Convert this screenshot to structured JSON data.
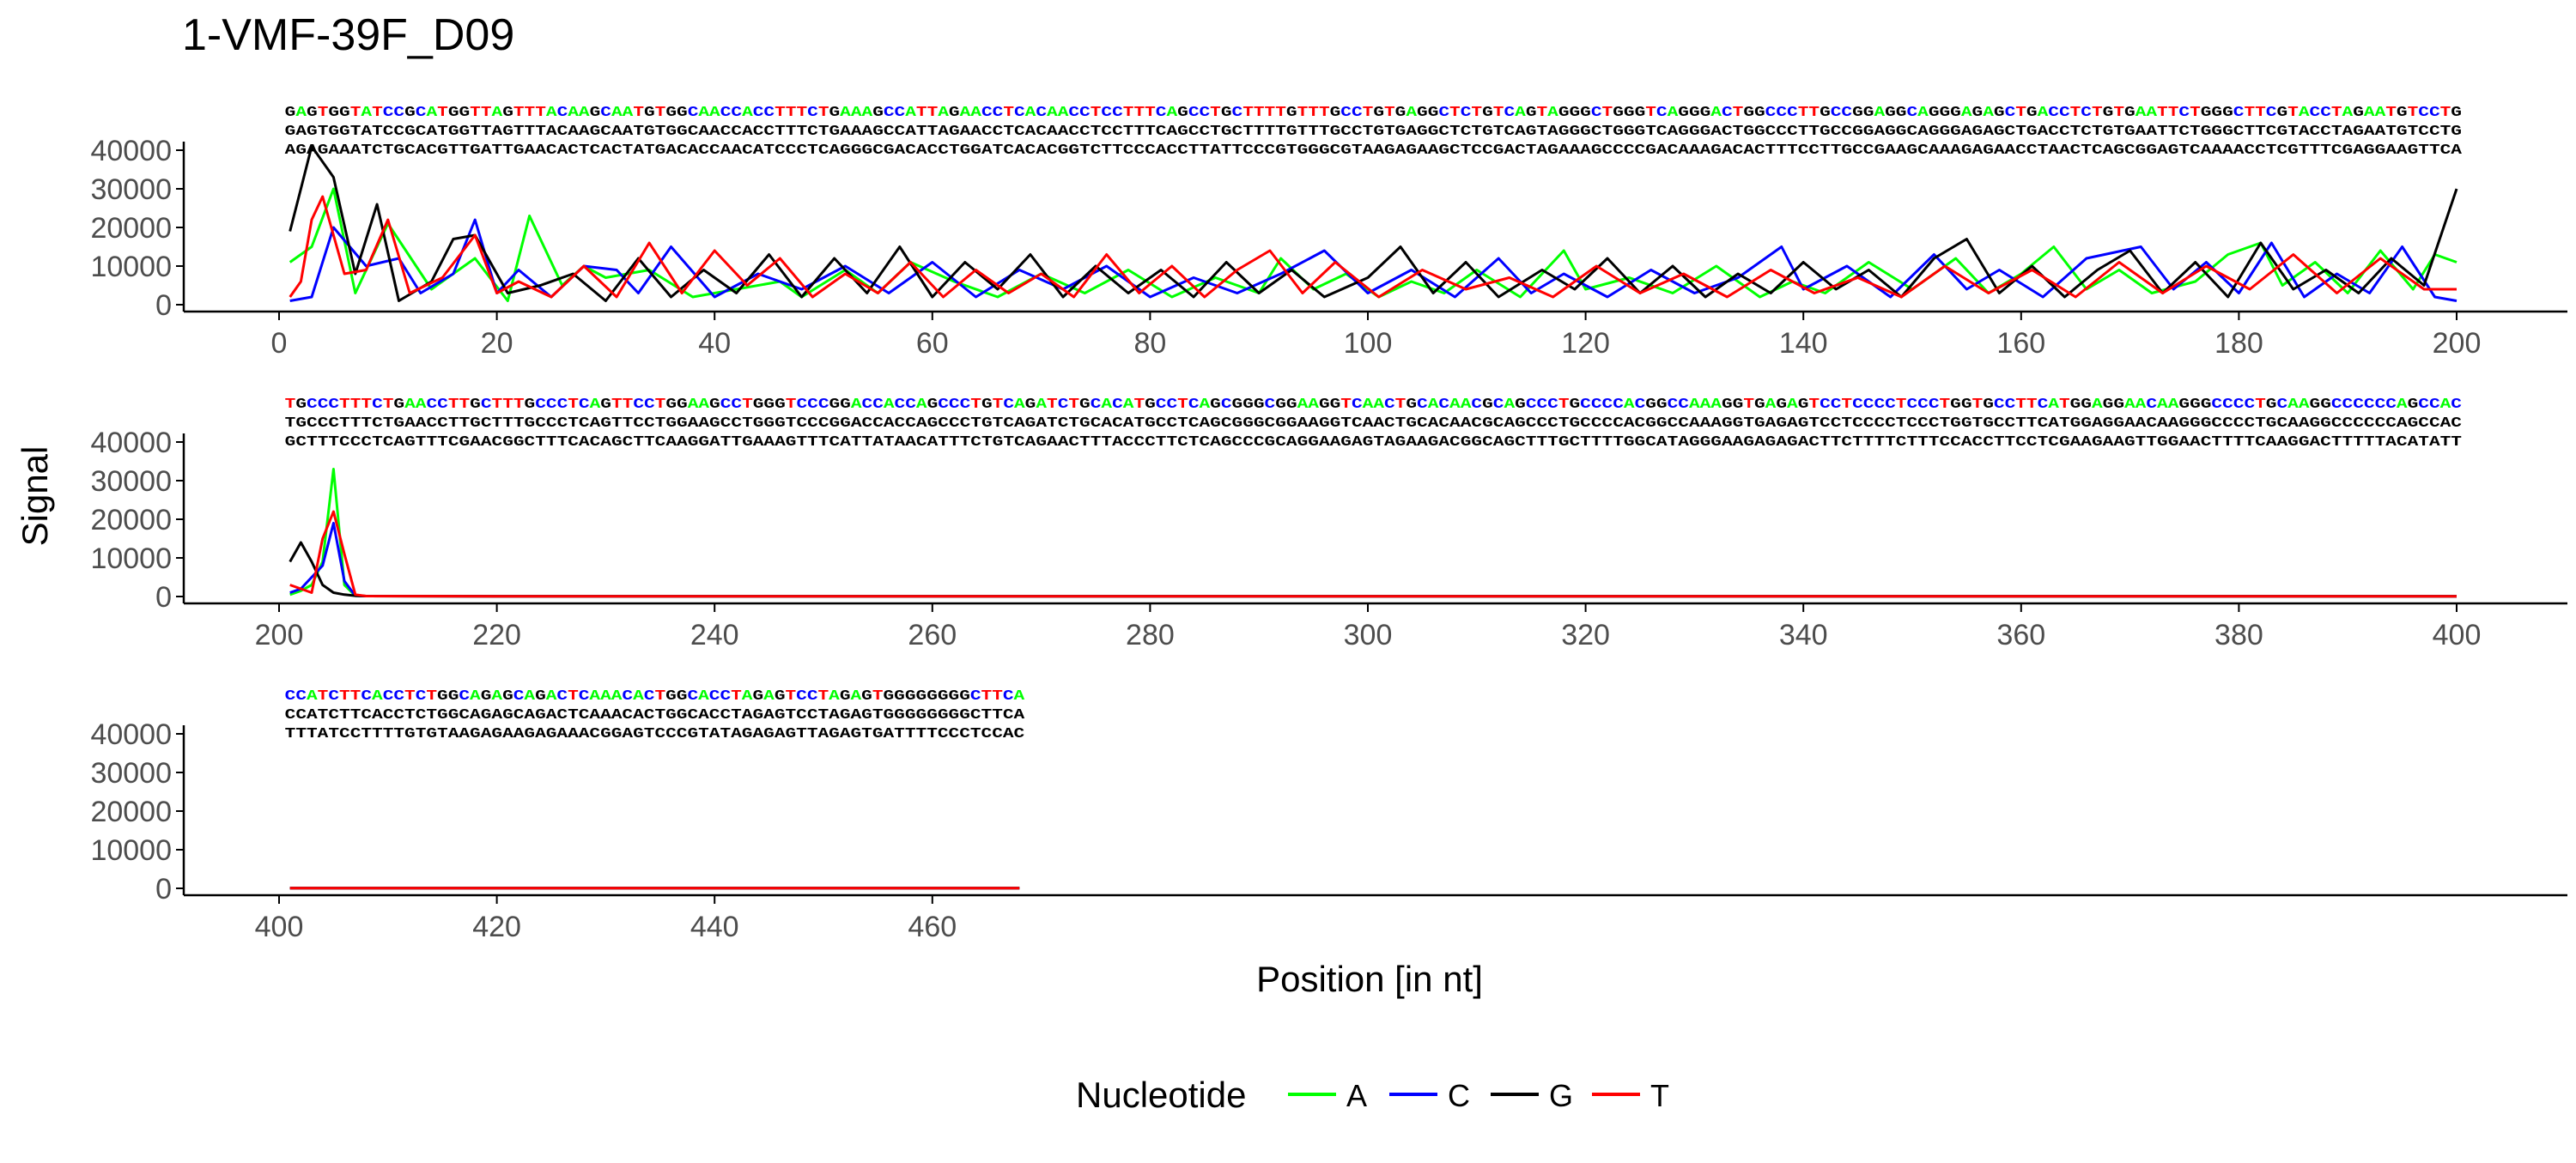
{
  "chart_data": {
    "type": "line",
    "title": "1-VMF-39F_D09",
    "xlabel": "Position [in nt]",
    "ylabel": "Signal",
    "ylim": [
      0,
      40000
    ],
    "yticks": [
      "0",
      "10000",
      "20000",
      "30000",
      "40000"
    ],
    "grid": false,
    "legend": {
      "title": "Nucleotide",
      "position": "bottom",
      "entries": [
        {
          "name": "A",
          "color": "#00ff00"
        },
        {
          "name": "C",
          "color": "#0000ff"
        },
        {
          "name": "G",
          "color": "#000000"
        },
        {
          "name": "T",
          "color": "#ff0000"
        }
      ]
    },
    "base_colors": {
      "A": "#00ff00",
      "C": "#0000ff",
      "G": "#000000",
      "T": "#ff0000"
    },
    "panels": [
      {
        "xrange": [
          0,
          200
        ],
        "xticks": [
          "0",
          "20",
          "40",
          "60",
          "80",
          "100",
          "120",
          "140",
          "160",
          "180",
          "200"
        ],
        "sequence_lines": [
          "GAGTGGTATCCGCATGGTTAGTTTACAAGCAATGTGGCAACCACCTTTCTGAAAGCCATTAGAACCTCACAACCTCCTTTCAGCCTGCTTTTGTTTGCCTGTGAGGCTCTGTCAGTAGGGCTGGGTCAGGGACTGGCCCTTGCCGGAGGCAGGGAGAGCTGACCTCTGTGAATTCTGGGCTTCGTACCTAGAATGTCCTG",
          "GAGTGGTATCCGCATGGTTAGTTTACAAGCAATGTGGCAACCACCTTTCTGAAAGCCATTAGAACCTCACAACCTCCTTTCAGCCTGCTTTTGTTTGCCTGTGAGGCTCTGTCAGTAGGGCTGGGTCAGGGACTGGCCCTTGCCGGAGGCAGGGAGAGCTGACCTCTGTGAATTCTGGGCTTCGTACCTAGAATGTCCTG",
          "AGAGAAATCTGCACGTTGATTGAACACTCACTATGACACCAACATCCCTCAGGGCGACACCTGGATCACACGGTCTTCCCACCTTATTCCCGTGGGCGTAAGAGAAGCTCCGACTAGAAAGCCCCGACAAAGACACTTTCCTTGCCGAAGCAAAGAGAACCTAACTCAGCGGAGTCAAAACCTCGTTTCGAGGAAGTTCA"
        ]
      },
      {
        "xrange": [
          200,
          400
        ],
        "xticks": [
          "200",
          "220",
          "240",
          "260",
          "280",
          "300",
          "320",
          "340",
          "360",
          "380",
          "400"
        ],
        "sequence_lines": [
          "TGCCCTTTCTGAACCTTGCTTTGCCCTCAGTTCCTGGAAGCCTGGGTCCCGGACCACCAGCCCTGTCAGATCTGCACATGCCTCAGCGGGCGGAAGGTCAACTGCACAACGCAGCCCTGCCCCACGGCCAAAGGTGAGAGTCCTCCCCTCCCTGGTGCCTTCATGGAGGAACAAGGGCCCCTGCAAGGCCCCCCAGCCAC",
          "TGCCCTTTCTGAACCTTGCTTTGCCCTCAGTTCCTGGAAGCCTGGGTCCCGGACCACCAGCCCTGTCAGATCTGCACATGCCTCAGCGGGCGGAAGGTCAACTGCACAACGCAGCCCTGCCCCACGGCCAAAGGTGAGAGTCCTCCCCTCCCTGGTGCCTTCATGGAGGAACAAGGGCCCCTGCAAGGCCCCCCAGCCAC",
          "GCTTTCCCTCAGTTTCGAACGGCTTTCACAGCTTCAAGGATTGAAAGTTTCATTATAACATTTCTGTCAGAACTTTACCCTTCTCAGCCCGCAGGAAGAGTAGAAGACGGCAGCTTTGCTTTTGGCATAGGGAAGAGAGACTTCTTTTCTTTCCACCTTCCTCGAAGAAGTTGGAACTTTTCAAGGACTTTTTACATATT"
        ]
      },
      {
        "xrange": [
          400,
          468
        ],
        "xticks": [
          "400",
          "420",
          "440",
          "460"
        ],
        "sequence_lines": [
          "CCATCTTCACCTCTGGCAGAGCAGACTCAAACACTGGCACCTAGAGTCCTAGAGTGGGGGGGGCTTCA",
          "CCATCTTCACCTCTGGCAGAGCAGACTCAAACACTGGCACCTAGAGTCCTAGAGTGGGGGGGGCTTCA",
          "TTTATCCTTTTGTGTAAGAGAAGAGAAACGGAGTCCCGTATAGAGAGTTAGAGTGATTTTCCCTCCAC"
        ]
      }
    ],
    "series": [
      {
        "name": "A",
        "x": [
          1,
          3,
          5,
          7,
          10,
          14,
          18,
          21,
          23,
          26,
          28,
          30,
          34,
          38,
          42,
          46,
          48,
          52,
          55,
          58,
          62,
          66,
          70,
          74,
          78,
          82,
          86,
          90,
          92,
          95,
          98,
          101,
          104,
          107,
          110,
          114,
          118,
          120,
          124,
          128,
          132,
          136,
          139,
          142,
          146,
          150,
          154,
          157,
          160,
          163,
          166,
          169,
          172,
          176,
          179,
          182,
          184,
          187,
          190,
          193,
          196,
          198,
          200,
          201,
          202,
          203,
          204,
          205,
          206,
          207,
          208,
          220,
          250,
          300,
          350,
          400,
          401,
          468
        ],
        "y": [
          11000,
          15000,
          30000,
          3000,
          21000,
          4000,
          12000,
          1000,
          23000,
          5000,
          10000,
          7000,
          9000,
          2000,
          4000,
          6000,
          2000,
          9000,
          3000,
          11000,
          6000,
          2000,
          8000,
          3000,
          9000,
          2000,
          7000,
          3000,
          12000,
          4000,
          8000,
          2000,
          6000,
          3000,
          9000,
          2000,
          14000,
          4000,
          7000,
          3000,
          10000,
          2000,
          6000,
          3000,
          11000,
          4000,
          12000,
          3000,
          8000,
          15000,
          4000,
          9000,
          3000,
          6000,
          13000,
          16000,
          5000,
          11000,
          3000,
          14000,
          4000,
          13000,
          11000,
          500,
          1500,
          3000,
          9000,
          33000,
          3000,
          200,
          100,
          50,
          50,
          50,
          50,
          50,
          50,
          50
        ]
      },
      {
        "name": "C",
        "x": [
          1,
          3,
          5,
          8,
          11,
          13,
          16,
          18,
          20,
          22,
          25,
          28,
          31,
          33,
          36,
          40,
          44,
          48,
          52,
          56,
          60,
          64,
          68,
          72,
          76,
          80,
          84,
          88,
          92,
          96,
          100,
          104,
          108,
          112,
          115,
          118,
          122,
          126,
          130,
          134,
          138,
          140,
          144,
          148,
          152,
          155,
          158,
          162,
          166,
          171,
          174,
          177,
          180,
          183,
          186,
          189,
          192,
          195,
          198,
          200,
          201,
          202,
          203,
          204,
          205,
          206,
          207,
          208,
          220,
          250,
          300,
          350,
          400,
          401,
          468
        ],
        "y": [
          1000,
          2000,
          20000,
          10000,
          12000,
          3000,
          8000,
          22000,
          3000,
          9000,
          2000,
          10000,
          9000,
          3000,
          15000,
          2000,
          8000,
          4000,
          10000,
          3000,
          11000,
          2000,
          9000,
          4000,
          10000,
          2000,
          7000,
          3000,
          8000,
          14000,
          3000,
          9000,
          2000,
          12000,
          3000,
          8000,
          2000,
          9000,
          3000,
          7000,
          15000,
          4000,
          10000,
          2000,
          13000,
          4000,
          9000,
          2000,
          12000,
          15000,
          4000,
          11000,
          3000,
          16000,
          2000,
          8000,
          3000,
          15000,
          2000,
          1000,
          1000,
          2000,
          5000,
          8000,
          19000,
          4000,
          200,
          100,
          50,
          50,
          50,
          50,
          50,
          50,
          50
        ]
      },
      {
        "name": "G",
        "x": [
          1,
          2,
          3,
          5,
          7,
          9,
          11,
          14,
          16,
          18,
          21,
          24,
          27,
          30,
          33,
          36,
          39,
          42,
          45,
          48,
          51,
          54,
          57,
          60,
          63,
          66,
          69,
          72,
          75,
          78,
          81,
          84,
          87,
          90,
          93,
          96,
          100,
          103,
          106,
          109,
          112,
          116,
          119,
          122,
          125,
          128,
          131,
          134,
          137,
          140,
          143,
          146,
          149,
          152,
          155,
          158,
          161,
          164,
          167,
          170,
          173,
          176,
          179,
          182,
          185,
          188,
          191,
          194,
          197,
          200,
          201,
          202,
          203,
          204,
          205,
          206,
          207,
          208,
          220,
          250,
          300,
          350,
          400,
          401,
          468
        ],
        "y": [
          19000,
          30000,
          41000,
          33000,
          8000,
          26000,
          1000,
          6000,
          17000,
          18000,
          3000,
          5000,
          8000,
          1000,
          12000,
          2000,
          9000,
          3000,
          13000,
          2000,
          12000,
          3000,
          15000,
          2000,
          11000,
          4000,
          13000,
          2000,
          10000,
          3000,
          9000,
          2000,
          11000,
          3000,
          9000,
          2000,
          7000,
          15000,
          3000,
          11000,
          2000,
          9000,
          4000,
          12000,
          3000,
          10000,
          2000,
          8000,
          3000,
          11000,
          4000,
          9000,
          2000,
          12000,
          17000,
          3000,
          10000,
          2000,
          9000,
          14000,
          3000,
          11000,
          2000,
          16000,
          4000,
          9000,
          3000,
          12000,
          5000,
          30000,
          9000,
          14000,
          9000,
          3000,
          1000,
          500,
          200,
          100,
          50,
          50,
          50,
          50,
          50,
          50,
          50
        ]
      },
      {
        "name": "T",
        "x": [
          1,
          2,
          3,
          4,
          6,
          8,
          10,
          12,
          15,
          18,
          20,
          22,
          25,
          28,
          31,
          34,
          37,
          40,
          43,
          46,
          49,
          52,
          55,
          58,
          61,
          64,
          67,
          70,
          73,
          76,
          79,
          82,
          85,
          88,
          91,
          94,
          97,
          101,
          105,
          109,
          113,
          117,
          121,
          125,
          129,
          133,
          137,
          141,
          145,
          149,
          153,
          157,
          161,
          165,
          169,
          173,
          177,
          181,
          185,
          189,
          193,
          197,
          200,
          201,
          202,
          203,
          204,
          205,
          206,
          207,
          208,
          220,
          250,
          300,
          350,
          400,
          401,
          468
        ],
        "y": [
          2000,
          6000,
          22000,
          28000,
          8000,
          9000,
          22000,
          3000,
          7000,
          18000,
          3000,
          6000,
          2000,
          10000,
          2000,
          16000,
          3000,
          14000,
          5000,
          12000,
          2000,
          8000,
          3000,
          11000,
          2000,
          9000,
          3000,
          8000,
          2000,
          13000,
          3000,
          10000,
          2000,
          9000,
          14000,
          3000,
          11000,
          2000,
          9000,
          4000,
          7000,
          2000,
          10000,
          3000,
          8000,
          2000,
          9000,
          3000,
          7000,
          2000,
          10000,
          3000,
          9000,
          2000,
          11000,
          3000,
          10000,
          4000,
          13000,
          3000,
          12000,
          4000,
          4000,
          3000,
          2000,
          1000,
          15000,
          22000,
          11000,
          500,
          100,
          50,
          50,
          50,
          50,
          50,
          50,
          50
        ]
      }
    ]
  }
}
